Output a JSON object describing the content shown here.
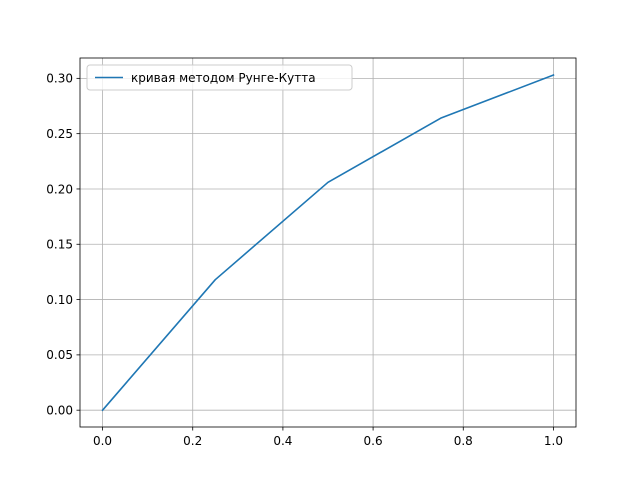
{
  "chart_data": {
    "type": "line",
    "title": "",
    "xlabel": "",
    "ylabel": "",
    "xlim": [
      -0.05,
      1.05
    ],
    "ylim": [
      -0.0152,
      0.3184
    ],
    "xticks": [
      0.0,
      0.2,
      0.4,
      0.6,
      0.8,
      1.0
    ],
    "xtick_labels": [
      "0.0",
      "0.2",
      "0.4",
      "0.6",
      "0.8",
      "1.0"
    ],
    "yticks": [
      0.0,
      0.05,
      0.1,
      0.15,
      0.2,
      0.25,
      0.3
    ],
    "ytick_labels": [
      "0.00",
      "0.05",
      "0.10",
      "0.15",
      "0.20",
      "0.25",
      "0.30"
    ],
    "grid": true,
    "legend_position": "top-left",
    "series": [
      {
        "name": "кривая методом Рунге-Кутта",
        "color": "#1f77b4",
        "x": [
          0.0,
          0.25,
          0.5,
          0.75,
          1.0
        ],
        "y": [
          0.0,
          0.118,
          0.206,
          0.264,
          0.303
        ]
      }
    ]
  }
}
